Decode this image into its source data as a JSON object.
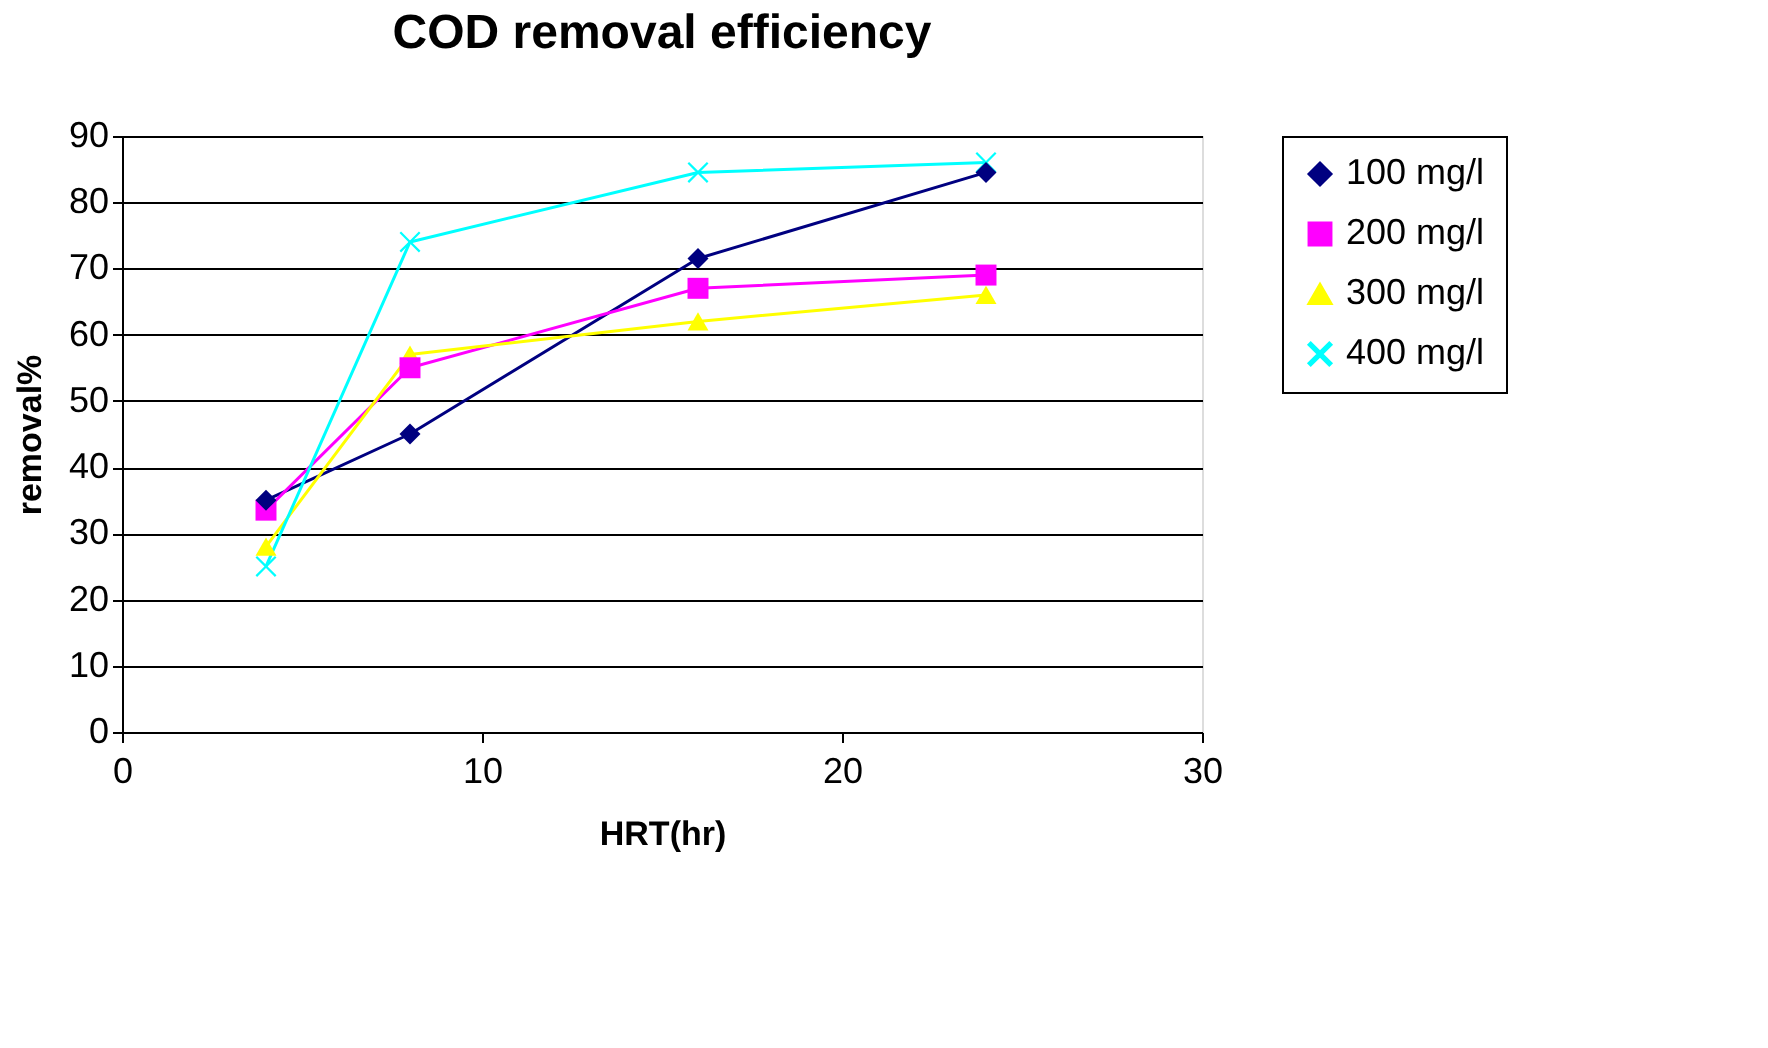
{
  "chart_data": {
    "type": "line",
    "title": "COD removal efficiency",
    "xlabel": "HRT(hr)",
    "ylabel": "removal%",
    "x": [
      4,
      8,
      16,
      24
    ],
    "series": [
      {
        "name": "100 mg/l",
        "color": "#000080",
        "marker": "diamond",
        "values": [
          35,
          45,
          71.5,
          84.5
        ]
      },
      {
        "name": "200 mg/l",
        "color": "#ff00ff",
        "marker": "square",
        "values": [
          33.5,
          55,
          67,
          69
        ]
      },
      {
        "name": "300 mg/l",
        "color": "#ffff00",
        "marker": "triangle",
        "values": [
          28,
          57,
          62,
          66
        ]
      },
      {
        "name": "400 mg/l",
        "color": "#00ffff",
        "marker": "cross",
        "values": [
          25,
          74,
          84.5,
          86
        ]
      }
    ],
    "xlim": [
      0,
      30
    ],
    "xticks": [
      0,
      10,
      20,
      30
    ],
    "ylim": [
      0,
      90
    ],
    "yticks": [
      0,
      10,
      20,
      30,
      40,
      50,
      60,
      70,
      80,
      90
    ],
    "grid": "y",
    "legend": "right",
    "line_style": "solid"
  }
}
